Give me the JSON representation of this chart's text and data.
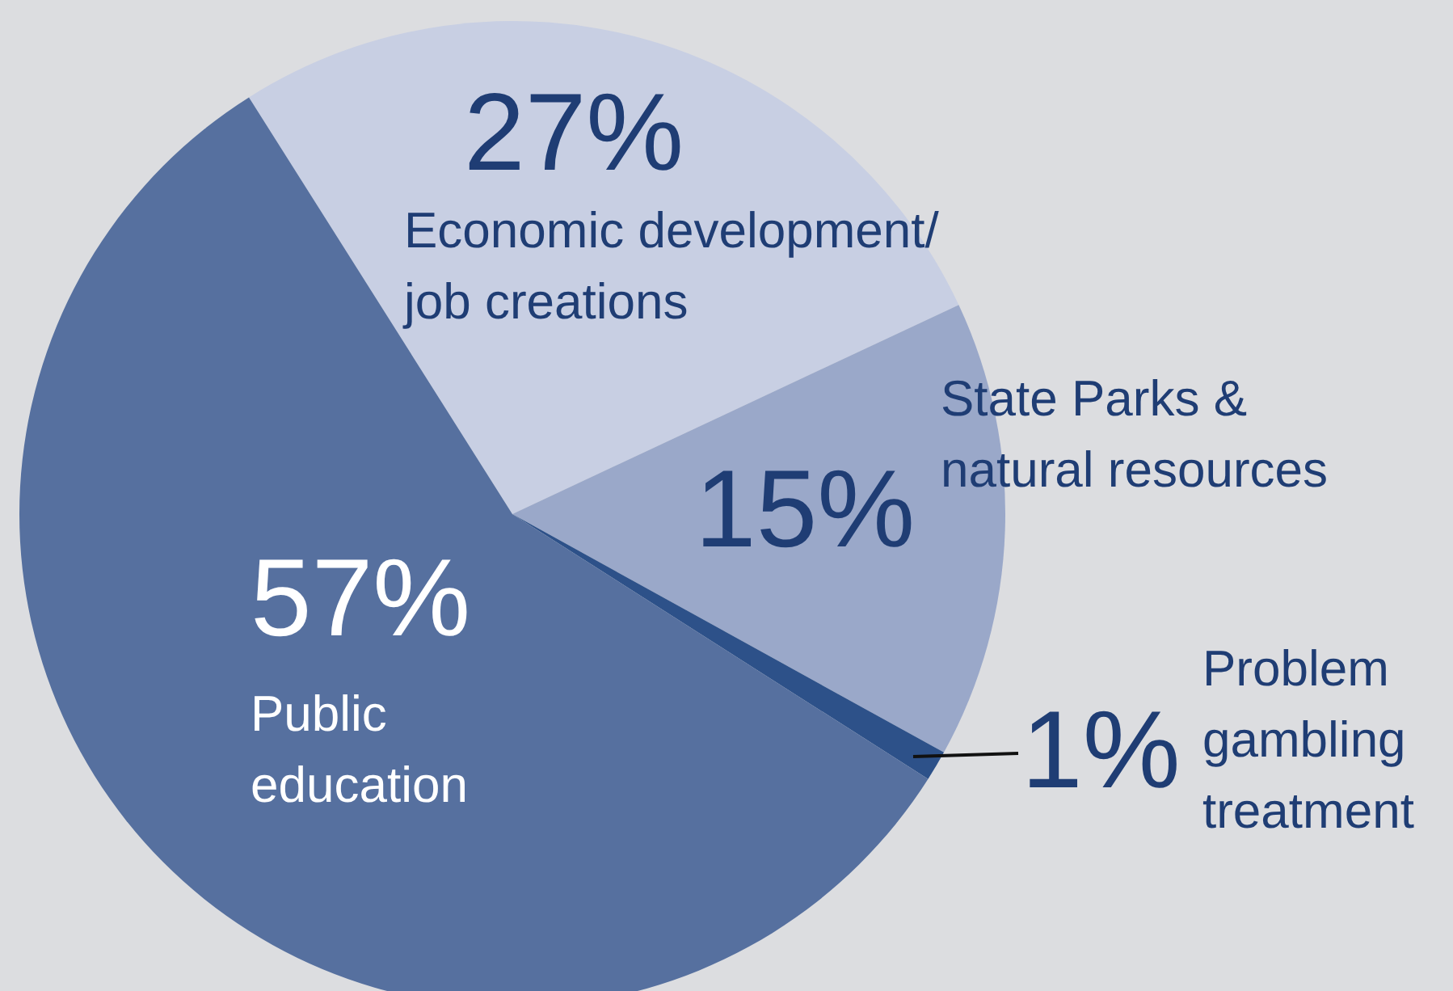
{
  "chart_data": {
    "type": "pie",
    "categories": [
      "Economic development/ job creations",
      "State Parks & natural resources",
      "Problem gambling treatment",
      "Public education"
    ],
    "values": [
      27,
      15,
      1,
      57
    ],
    "value_labels": [
      "27%",
      "15%",
      "1%",
      "57%"
    ],
    "colors": [
      "#c8cfe3",
      "#9aa8c9",
      "#2d5189",
      "#56709f"
    ]
  }
}
